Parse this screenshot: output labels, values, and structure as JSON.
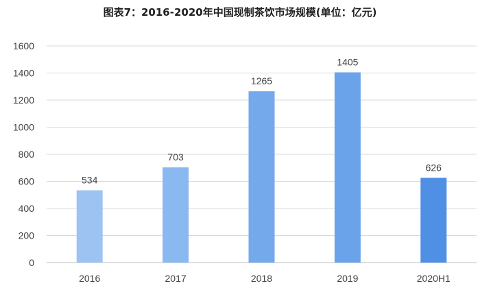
{
  "chart_data": {
    "type": "bar",
    "title": "图表7：2016-2020年中国现制茶饮市场规模(单位：亿元)",
    "categories": [
      "2016",
      "2017",
      "2018",
      "2019",
      "2020H1"
    ],
    "values": [
      534,
      703,
      1265,
      1405,
      626
    ],
    "ylim": [
      0,
      1600
    ],
    "yticks": [
      0,
      200,
      400,
      600,
      800,
      1000,
      1200,
      1400,
      1600
    ],
    "grid": true,
    "bar_colors": [
      "#9dc3f2",
      "#8ab8f0",
      "#74a9ec",
      "#6ba3ea",
      "#4f8fe4"
    ],
    "xlabel": "",
    "ylabel": ""
  },
  "colors": {
    "grid": "#d9d9d9",
    "axis": "#bfbfbf",
    "text": "#404040"
  }
}
